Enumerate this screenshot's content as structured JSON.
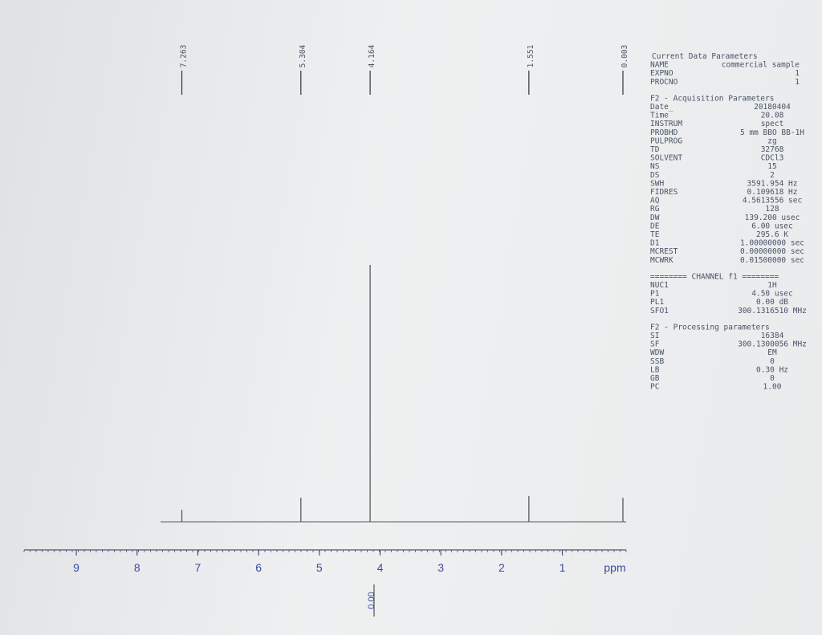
{
  "chart_data": {
    "type": "nmr",
    "xlabel": "ppm",
    "xlim": [
      9.86,
      -0.05
    ],
    "xticks": [
      9,
      8,
      7,
      6,
      5,
      4,
      3,
      2,
      1
    ],
    "x": [
      7.263,
      5.304,
      4.164,
      1.551,
      0.003
    ],
    "values": [
      15,
      30,
      320,
      32,
      30
    ],
    "color": "#555a60",
    "integral_label": "0.00"
  },
  "parameters": {
    "blocks": [
      {
        "title": "Current Data Parameters",
        "rows": [
          [
            "NAME",
            "commercial sample"
          ],
          [
            "EXPNO",
            "1"
          ],
          [
            "PROCNO",
            "1"
          ]
        ]
      },
      {
        "title": "F2 - Acquisition Parameters",
        "rows": [
          [
            "Date_",
            "20180404"
          ],
          [
            "Time",
            "20.08"
          ],
          [
            "INSTRUM",
            "spect"
          ],
          [
            "PROBHD",
            "5 mm BBO BB-1H"
          ],
          [
            "PULPROG",
            "zg"
          ],
          [
            "TD",
            "32768"
          ],
          [
            "SOLVENT",
            "CDCl3"
          ],
          [
            "NS",
            "15"
          ],
          [
            "DS",
            "2"
          ],
          [
            "SWH",
            "3591.954 Hz"
          ],
          [
            "FIDRES",
            "0.109618 Hz"
          ],
          [
            "AQ",
            "4.5613556 sec"
          ],
          [
            "RG",
            "128"
          ],
          [
            "DW",
            "139.200 usec"
          ],
          [
            "DE",
            "6.00 usec"
          ],
          [
            "TE",
            "295.6 K"
          ],
          [
            "D1",
            "1.00000000 sec"
          ],
          [
            "MCREST",
            "0.00000000 sec"
          ],
          [
            "MCWRK",
            "0.01500000 sec"
          ]
        ]
      },
      {
        "title": "======== CHANNEL f1 ========",
        "rows": [
          [
            "NUC1",
            "1H"
          ],
          [
            "P1",
            "4.50 usec"
          ],
          [
            "PL1",
            "0.00 dB"
          ],
          [
            "SFO1",
            "300.1316510 MHz"
          ]
        ]
      },
      {
        "title": "F2 - Processing parameters",
        "rows": [
          [
            "SI",
            "16384"
          ],
          [
            "SF",
            "300.1300056 MHz"
          ],
          [
            "WDW",
            "EM"
          ],
          [
            "SSB",
            "0"
          ],
          [
            "LB",
            "0.30 Hz"
          ],
          [
            "GB",
            "0"
          ],
          [
            "PC",
            "1.00"
          ]
        ]
      }
    ]
  }
}
